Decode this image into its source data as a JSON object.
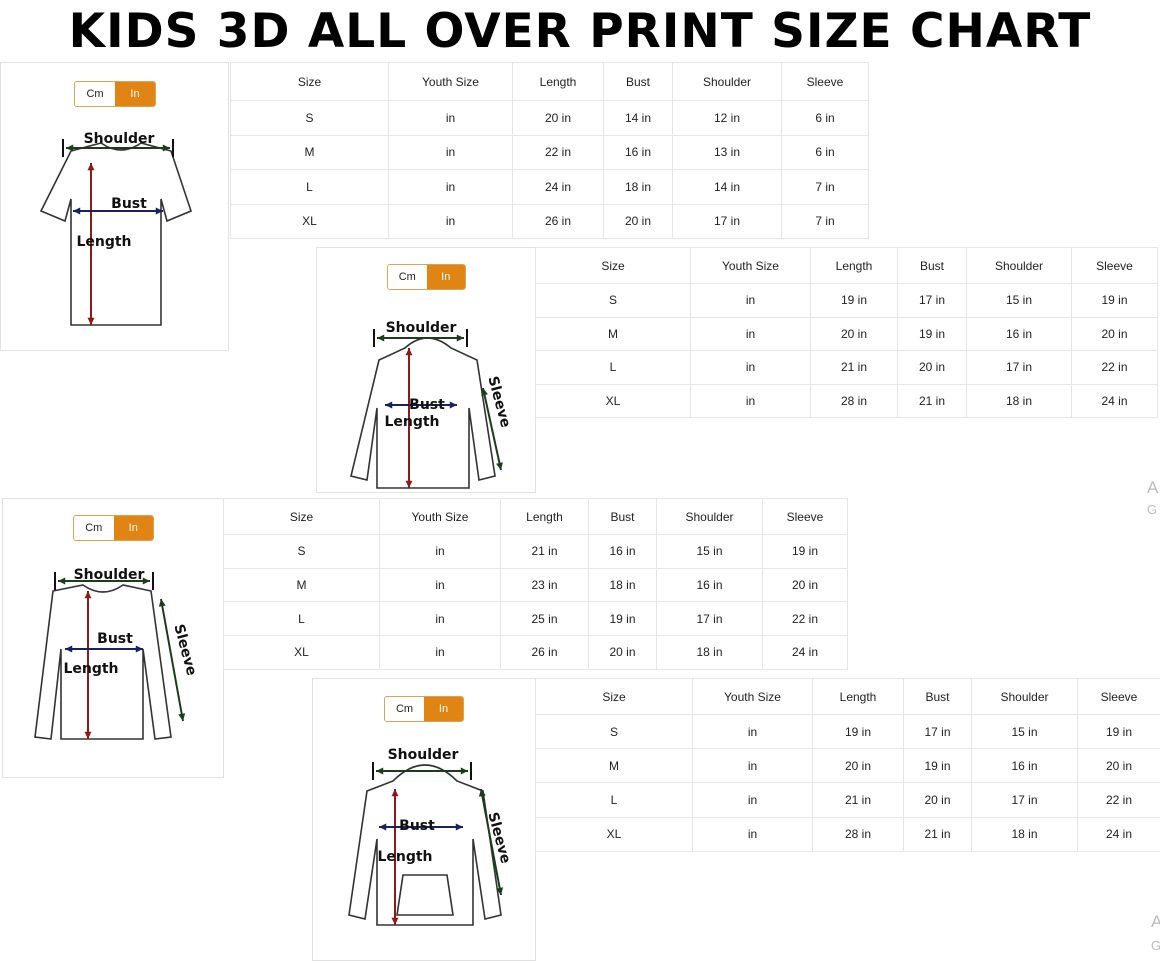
{
  "title": "KIDS 3D ALL OVER PRINT SIZE CHART",
  "unit_toggle": {
    "cm_label": "Cm",
    "in_label": "In",
    "selected": "In",
    "active_color": "#e08414"
  },
  "columns": [
    "Size",
    "Youth Size",
    "Length",
    "Bust",
    "Shoulder",
    "Sleeve"
  ],
  "arrow_colors": {
    "length": "#8b1a1a",
    "bust": "#1a2060",
    "shoulder": "#1d3b1d"
  },
  "panels": [
    {
      "garment": "t-shirt",
      "labels": {
        "shoulder": "Shoulder",
        "bust": "Bust",
        "length": "Length"
      },
      "rows": [
        [
          "S",
          "in",
          "20 in",
          "14 in",
          "12 in",
          "6 in"
        ],
        [
          "M",
          "in",
          "22 in",
          "16 in",
          "13 in",
          "6 in"
        ],
        [
          "L",
          "in",
          "24 in",
          "18 in",
          "14 in",
          "7 in"
        ],
        [
          "XL",
          "in",
          "26 in",
          "20 in",
          "17 in",
          "7 in"
        ]
      ]
    },
    {
      "garment": "zip-hoodie",
      "labels": {
        "shoulder": "Shoulder",
        "bust": "Bust",
        "length": "Length",
        "sleeve": "Sleeve"
      },
      "rows": [
        [
          "S",
          "in",
          "19 in",
          "17 in",
          "15 in",
          "19 in"
        ],
        [
          "M",
          "in",
          "20 in",
          "19 in",
          "16 in",
          "20 in"
        ],
        [
          "L",
          "in",
          "21 in",
          "20 in",
          "17 in",
          "22 in"
        ],
        [
          "XL",
          "in",
          "28 in",
          "21 in",
          "18 in",
          "24 in"
        ]
      ]
    },
    {
      "garment": "long-sleeve-shirt",
      "labels": {
        "shoulder": "Shoulder",
        "bust": "Bust",
        "length": "Length",
        "sleeve": "Sleeve"
      },
      "rows": [
        [
          "S",
          "in",
          "21 in",
          "16 in",
          "15 in",
          "19 in"
        ],
        [
          "M",
          "in",
          "23 in",
          "18 in",
          "16 in",
          "20 in"
        ],
        [
          "L",
          "in",
          "25 in",
          "19 in",
          "17 in",
          "22 in"
        ],
        [
          "XL",
          "in",
          "26 in",
          "20 in",
          "18 in",
          "24 in"
        ]
      ]
    },
    {
      "garment": "pullover-hoodie",
      "labels": {
        "shoulder": "Shoulder",
        "bust": "Bust",
        "length": "Length",
        "sleeve": "Sleeve"
      },
      "rows": [
        [
          "S",
          "in",
          "19 in",
          "17 in",
          "15 in",
          "19 in"
        ],
        [
          "M",
          "in",
          "20 in",
          "19 in",
          "16 in",
          "20 in"
        ],
        [
          "L",
          "in",
          "21 in",
          "20 in",
          "17 in",
          "22 in"
        ],
        [
          "XL",
          "in",
          "28 in",
          "21 in",
          "18 in",
          "24 in"
        ]
      ]
    }
  ],
  "watermark_fragments": [
    "A",
    "G",
    "A",
    "G"
  ]
}
